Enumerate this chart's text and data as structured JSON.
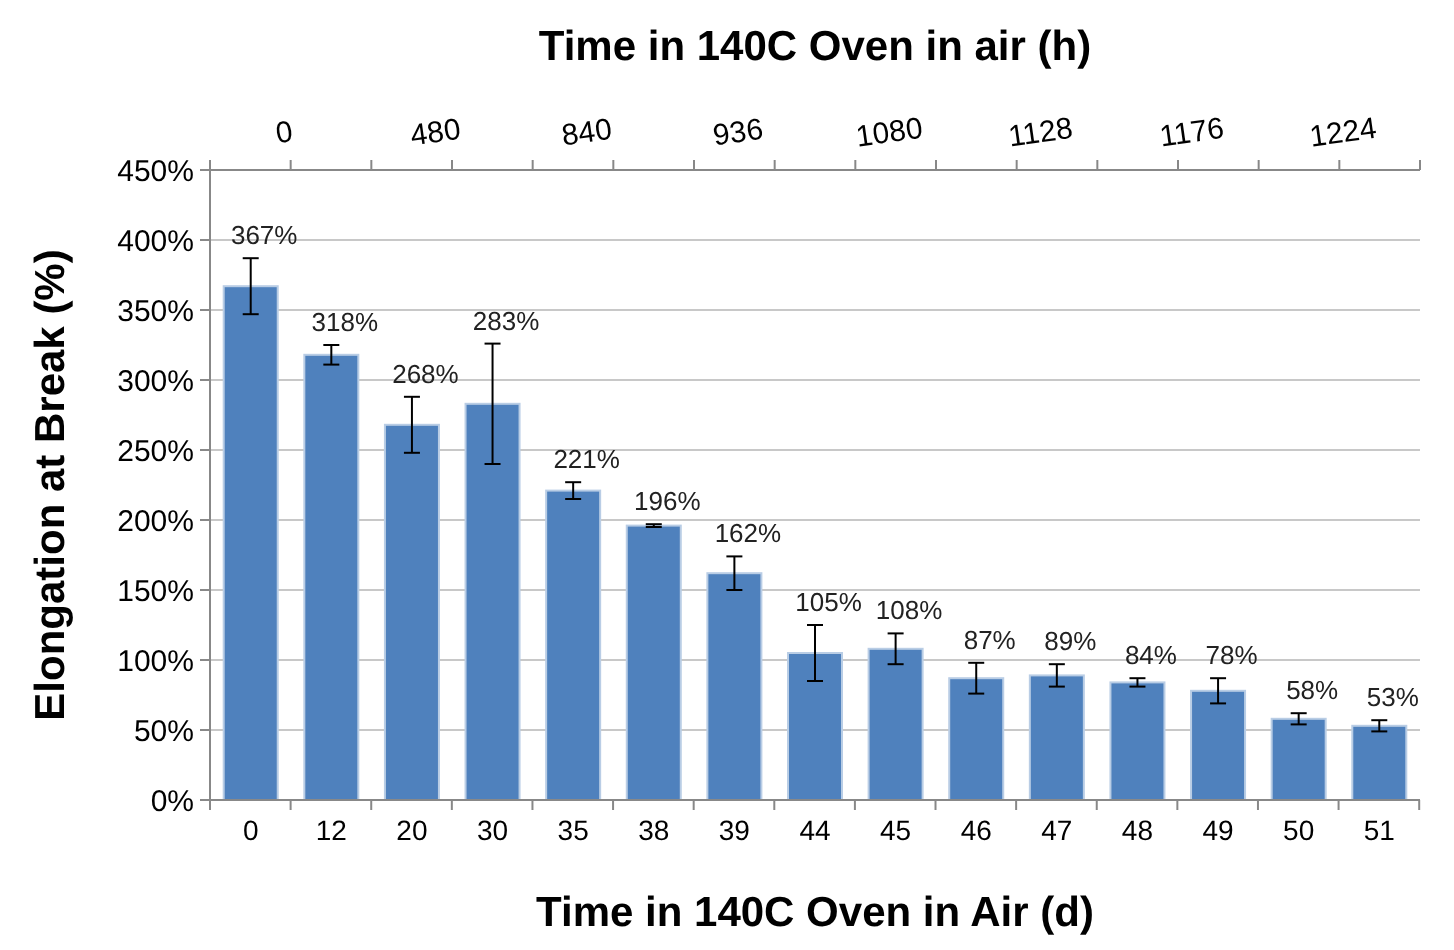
{
  "chart_data": {
    "type": "bar",
    "xlabel": "Time in 140C Oven in Air (d)",
    "ylabel": "Elongation at Break (%)",
    "x2label": "Time in 140C Oven in air (h)",
    "categories": [
      "0",
      "12",
      "20",
      "30",
      "35",
      "38",
      "39",
      "44",
      "45",
      "46",
      "47",
      "48",
      "49",
      "50",
      "51"
    ],
    "values": [
      367,
      318,
      268,
      283,
      221,
      196,
      162,
      105,
      108,
      87,
      89,
      84,
      78,
      58,
      53
    ],
    "value_labels": [
      "367%",
      "318%",
      "268%",
      "283%",
      "221%",
      "196%",
      "162%",
      "105%",
      "108%",
      "87%",
      "89%",
      "84%",
      "78%",
      "58%",
      "53%"
    ],
    "errors": [
      20,
      7,
      20,
      43,
      6,
      1,
      12,
      20,
      11,
      11,
      8,
      3,
      9,
      4,
      4
    ],
    "color": "#4f81bd",
    "ylim": [
      0,
      450
    ],
    "yticks": [
      {
        "value": 0,
        "label": "0%"
      },
      {
        "value": 50,
        "label": "50%"
      },
      {
        "value": 100,
        "label": "100%"
      },
      {
        "value": 150,
        "label": "150%"
      },
      {
        "value": 200,
        "label": "200%"
      },
      {
        "value": 250,
        "label": "250%"
      },
      {
        "value": 300,
        "label": "300%"
      },
      {
        "value": 350,
        "label": "350%"
      },
      {
        "value": 400,
        "label": "400%"
      },
      {
        "value": 450,
        "label": "450%"
      }
    ],
    "annotations": [
      "0",
      "480",
      "840",
      "936",
      "1080",
      "1128",
      "1176",
      "1224"
    ],
    "grid": "y"
  }
}
